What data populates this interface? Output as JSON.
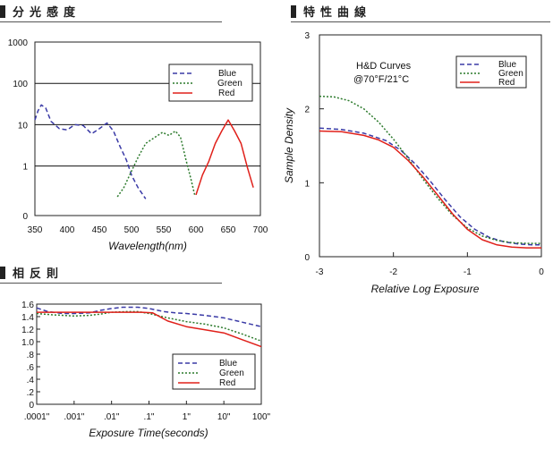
{
  "sections": {
    "spectral": "分光感度",
    "hd": "特性曲線",
    "reciprocity": "相反則"
  },
  "colors": {
    "blue": "#3a3aa6",
    "green": "#2c7a2c",
    "red": "#e0201a",
    "frame": "#222222"
  },
  "chart_data": [
    {
      "id": "spectral",
      "type": "line",
      "title": "分光感度",
      "xlabel": "Wavelength(nm)",
      "ylabel": "",
      "xlim": [
        350,
        700
      ],
      "ylim_log10": [
        -1.2,
        3
      ],
      "xticks": [
        "350",
        "400",
        "450",
        "500",
        "550",
        "600",
        "650",
        "700"
      ],
      "yticks": [
        {
          "label": "1000",
          "v": 1000
        },
        {
          "label": "100",
          "v": 100
        },
        {
          "label": "10",
          "v": 10
        },
        {
          "label": "1",
          "v": 1
        },
        {
          "label": "0",
          "v": 0.063
        }
      ],
      "grid": "horizontal",
      "legend": "top-right",
      "series": [
        {
          "name": "Blue",
          "color": "blue",
          "dash": "dashed",
          "segments": [
            [
              [
                350,
                13
              ],
              [
                355,
                22
              ],
              [
                360,
                30
              ],
              [
                367,
                25
              ],
              [
                375,
                12
              ],
              [
                388,
                8
              ],
              [
                400,
                7.5
              ],
              [
                412,
                10
              ],
              [
                425,
                9.5
              ],
              [
                438,
                6
              ],
              [
                450,
                8
              ],
              [
                462,
                11
              ],
              [
                472,
                7
              ],
              [
                482,
                3
              ],
              [
                492,
                1.4
              ],
              [
                500,
                0.6
              ],
              [
                510,
                0.3
              ],
              [
                522,
                0.16
              ]
            ]
          ]
        },
        {
          "name": "Green",
          "color": "green",
          "dash": "dotted",
          "segments": [
            [
              [
                478,
                0.18
              ],
              [
                488,
                0.3
              ],
              [
                498,
                0.65
              ],
              [
                510,
                1.6
              ],
              [
                522,
                3.5
              ],
              [
                535,
                4.8
              ],
              [
                548,
                6.5
              ],
              [
                558,
                5.5
              ],
              [
                568,
                7
              ],
              [
                576,
                5
              ],
              [
                584,
                1.5
              ],
              [
                592,
                0.5
              ],
              [
                598,
                0.2
              ]
            ]
          ]
        },
        {
          "name": "Red",
          "color": "red",
          "dash": "solid",
          "segments": [
            [
              [
                600,
                0.2
              ],
              [
                610,
                0.6
              ],
              [
                620,
                1.3
              ],
              [
                630,
                3.5
              ],
              [
                640,
                7
              ],
              [
                650,
                13
              ],
              [
                660,
                7
              ],
              [
                670,
                3.5
              ],
              [
                680,
                0.9
              ],
              [
                689,
                0.3
              ]
            ]
          ]
        }
      ]
    },
    {
      "id": "hd",
      "type": "line",
      "title": "特性曲線",
      "annotation_line1": "H&D Curves",
      "annotation_line2": "@70°F/21°C",
      "xlabel": "Relative Log Exposure",
      "ylabel": "Sample Density",
      "xlim": [
        -3,
        0
      ],
      "ylim": [
        0,
        3
      ],
      "xticks": [
        {
          "label": "-3",
          "v": -3
        },
        {
          "label": "-2",
          "v": -2
        },
        {
          "label": "-1",
          "v": -1
        },
        {
          "label": "0",
          "v": 0
        }
      ],
      "yticks": [
        {
          "label": "0",
          "v": 0
        },
        {
          "label": "1",
          "v": 1
        },
        {
          "label": "2",
          "v": 2
        },
        {
          "label": "3",
          "v": 3
        }
      ],
      "legend": "top-right",
      "series": [
        {
          "name": "Blue",
          "color": "blue",
          "dash": "dashed",
          "segments": [
            [
              [
                -3,
                1.74
              ],
              [
                -2.7,
                1.72
              ],
              [
                -2.4,
                1.67
              ],
              [
                -2.1,
                1.57
              ],
              [
                -1.9,
                1.44
              ],
              [
                -1.7,
                1.25
              ],
              [
                -1.5,
                1.02
              ],
              [
                -1.3,
                0.77
              ],
              [
                -1.1,
                0.54
              ],
              [
                -0.9,
                0.37
              ],
              [
                -0.7,
                0.26
              ],
              [
                -0.5,
                0.2
              ],
              [
                -0.3,
                0.17
              ],
              [
                -0.1,
                0.16
              ],
              [
                0,
                0.16
              ]
            ]
          ]
        },
        {
          "name": "Green",
          "color": "green",
          "dash": "dotted",
          "segments": [
            [
              [
                -3,
                2.17
              ],
              [
                -2.8,
                2.16
              ],
              [
                -2.6,
                2.11
              ],
              [
                -2.4,
                2.0
              ],
              [
                -2.2,
                1.82
              ],
              [
                -2.0,
                1.59
              ],
              [
                -1.8,
                1.33
              ],
              [
                -1.6,
                1.05
              ],
              [
                -1.4,
                0.79
              ],
              [
                -1.2,
                0.56
              ],
              [
                -1.0,
                0.39
              ],
              [
                -0.8,
                0.28
              ],
              [
                -0.6,
                0.22
              ],
              [
                -0.4,
                0.19
              ],
              [
                -0.2,
                0.18
              ],
              [
                0,
                0.18
              ]
            ]
          ]
        },
        {
          "name": "Red",
          "color": "red",
          "dash": "solid",
          "segments": [
            [
              [
                -3,
                1.7
              ],
              [
                -2.7,
                1.69
              ],
              [
                -2.4,
                1.64
              ],
              [
                -2.2,
                1.58
              ],
              [
                -2.0,
                1.48
              ],
              [
                -1.8,
                1.3
              ],
              [
                -1.6,
                1.08
              ],
              [
                -1.4,
                0.83
              ],
              [
                -1.2,
                0.58
              ],
              [
                -1.0,
                0.37
              ],
              [
                -0.8,
                0.23
              ],
              [
                -0.6,
                0.16
              ],
              [
                -0.4,
                0.13
              ],
              [
                -0.2,
                0.12
              ],
              [
                0,
                0.12
              ]
            ]
          ]
        }
      ]
    },
    {
      "id": "reciprocity",
      "type": "line",
      "title": "相反則",
      "xlabel": "Exposure Time(seconds)",
      "ylabel": "",
      "xlim_log10": [
        -4,
        2
      ],
      "ylim": [
        0,
        1.6
      ],
      "xticks": [
        {
          "label": ".0001\"",
          "v": -4
        },
        {
          "label": ".001\"",
          "v": -3
        },
        {
          "label": ".01\"",
          "v": -2
        },
        {
          "label": ".1\"",
          "v": -1
        },
        {
          "label": "1\"",
          "v": 0
        },
        {
          "label": "10\"",
          "v": 1
        },
        {
          "label": "100\"",
          "v": 2
        }
      ],
      "yticks": [
        {
          "label": "0",
          "v": 0
        },
        {
          "label": ".2",
          "v": 0.2
        },
        {
          "label": ".4",
          "v": 0.4
        },
        {
          "label": ".6",
          "v": 0.6
        },
        {
          "label": ".8",
          "v": 0.8
        },
        {
          "label": "1.0",
          "v": 1.0
        },
        {
          "label": "1.2",
          "v": 1.2
        },
        {
          "label": "1.4",
          "v": 1.4
        },
        {
          "label": "1.6",
          "v": 1.6
        }
      ],
      "legend": "bottom-right",
      "series": [
        {
          "name": "Blue",
          "color": "blue",
          "dash": "dashed",
          "segments": [
            [
              [
                -4,
                1.54
              ],
              [
                -3.7,
                1.48
              ],
              [
                -3.3,
                1.45
              ],
              [
                -3,
                1.45
              ],
              [
                -2.6,
                1.46
              ],
              [
                -2.3,
                1.5
              ],
              [
                -2,
                1.53
              ],
              [
                -1.7,
                1.55
              ],
              [
                -1.3,
                1.55
              ],
              [
                -1,
                1.53
              ],
              [
                -0.6,
                1.48
              ],
              [
                -0.3,
                1.46
              ],
              [
                0,
                1.45
              ],
              [
                0.5,
                1.42
              ],
              [
                1,
                1.38
              ],
              [
                1.5,
                1.31
              ],
              [
                2,
                1.24
              ]
            ]
          ]
        },
        {
          "name": "Green",
          "color": "green",
          "dash": "dotted",
          "segments": [
            [
              [
                -4,
                1.45
              ],
              [
                -3.6,
                1.43
              ],
              [
                -3.3,
                1.42
              ],
              [
                -3,
                1.41
              ],
              [
                -2.6,
                1.42
              ],
              [
                -2.3,
                1.44
              ],
              [
                -2,
                1.47
              ],
              [
                -1.6,
                1.48
              ],
              [
                -1.3,
                1.48
              ],
              [
                -1,
                1.45
              ],
              [
                -0.5,
                1.38
              ],
              [
                0,
                1.32
              ],
              [
                0.5,
                1.28
              ],
              [
                1,
                1.22
              ],
              [
                1.5,
                1.12
              ],
              [
                2,
                1.01
              ]
            ]
          ]
        },
        {
          "name": "Red",
          "color": "red",
          "dash": "solid",
          "segments": [
            [
              [
                -4,
                1.47
              ],
              [
                -3.5,
                1.47
              ],
              [
                -3,
                1.47
              ],
              [
                -2.5,
                1.47
              ],
              [
                -2,
                1.47
              ],
              [
                -1.6,
                1.47
              ],
              [
                -1.2,
                1.47
              ],
              [
                -0.9,
                1.46
              ],
              [
                -0.5,
                1.33
              ],
              [
                0,
                1.24
              ],
              [
                0.5,
                1.19
              ],
              [
                1,
                1.14
              ],
              [
                1.5,
                1.03
              ],
              [
                2,
                0.92
              ]
            ]
          ]
        }
      ]
    }
  ]
}
